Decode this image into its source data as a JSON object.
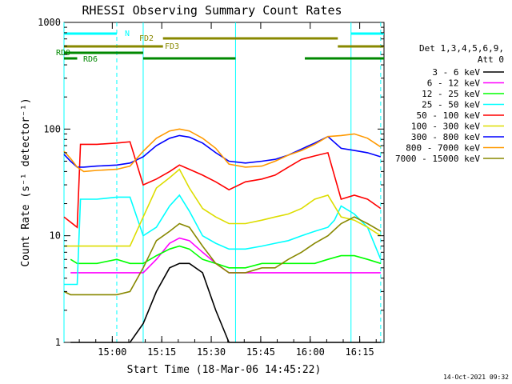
{
  "chart_data": {
    "type": "line",
    "title": "RHESSI Observing Summary Count Rates",
    "xlabel": "Start Time (18-Mar-06 14:45:22)",
    "ylabel": "Count Rate (s⁻¹ detector⁻¹)",
    "y_scale": "log",
    "ylim": [
      1,
      1000
    ],
    "xlim_minutes_from_start": [
      0,
      97
    ],
    "x_ticks": [
      "15:00",
      "15:15",
      "15:30",
      "15:45",
      "16:00",
      "16:15"
    ],
    "y_ticks": [
      "1",
      "10",
      "100",
      "1000"
    ],
    "legend_header": [
      "Det 1,3,4,5,6,9,",
      "Att 0"
    ],
    "legend_position": "right",
    "grid": false,
    "series": [
      {
        "name": "3 - 6 keV",
        "color": "#000000",
        "x": [
          2,
          4,
          10,
          16,
          20,
          24,
          28,
          32,
          35,
          38,
          42,
          46,
          50,
          55,
          60,
          64,
          68,
          72,
          76,
          80,
          84,
          88,
          92,
          96
        ],
        "y": [
          1,
          1,
          1,
          1,
          1,
          1.5,
          3,
          5,
          5.5,
          5.5,
          4.5,
          2,
          1,
          1,
          1,
          1,
          1,
          1,
          1,
          1,
          1,
          1,
          1,
          1
        ]
      },
      {
        "name": "6 - 12 keV",
        "color": "#ff00ff",
        "x": [
          2,
          4,
          10,
          16,
          20,
          24,
          28,
          32,
          35,
          38,
          42,
          46,
          50,
          55,
          60,
          64,
          68,
          72,
          76,
          80,
          84,
          88,
          92,
          96
        ],
        "y": [
          4.5,
          4.5,
          4.5,
          4.5,
          4.5,
          4.5,
          6,
          8.5,
          9.5,
          9,
          7,
          5.5,
          4.5,
          4.5,
          4.5,
          4.5,
          4.5,
          4.5,
          4.5,
          4.5,
          4.5,
          4.5,
          4.5,
          4.5
        ]
      },
      {
        "name": "12 - 25 keV",
        "color": "#00ff00",
        "x": [
          2,
          4,
          10,
          16,
          20,
          24,
          28,
          32,
          35,
          38,
          42,
          46,
          50,
          55,
          60,
          64,
          68,
          72,
          76,
          80,
          84,
          88,
          92,
          96
        ],
        "y": [
          6,
          5.5,
          5.5,
          6,
          5.5,
          5.5,
          6.5,
          7.5,
          8,
          7.5,
          6,
          5.5,
          5,
          5,
          5.5,
          5.5,
          5.5,
          5.5,
          5.5,
          6,
          6.5,
          6.5,
          6,
          5.5
        ]
      },
      {
        "name": "25 - 50 keV",
        "color": "#00ffff",
        "x": [
          0,
          4,
          5,
          10,
          16,
          20,
          24,
          28,
          32,
          35,
          38,
          42,
          46,
          50,
          55,
          60,
          64,
          68,
          72,
          76,
          80,
          82,
          84,
          88,
          92,
          96
        ],
        "y": [
          3.5,
          3.5,
          22,
          22,
          23,
          23,
          10,
          12,
          19,
          24,
          17,
          10,
          8.5,
          7.5,
          7.5,
          8,
          8.5,
          9,
          10,
          11,
          12,
          14,
          19,
          16,
          12,
          6
        ]
      },
      {
        "name": "50 - 100 keV",
        "color": "#ff0000",
        "x": [
          0,
          4,
          5,
          10,
          16,
          20,
          24,
          28,
          32,
          35,
          38,
          42,
          46,
          50,
          55,
          60,
          64,
          68,
          72,
          76,
          80,
          84,
          88,
          92,
          96
        ],
        "y": [
          15,
          12,
          72,
          72,
          74,
          76,
          30,
          34,
          40,
          46,
          42,
          37,
          32,
          27,
          32,
          34,
          37,
          44,
          52,
          56,
          60,
          22,
          24,
          22,
          18
        ]
      },
      {
        "name": "100 - 300 keV",
        "color": "#dddd00",
        "x": [
          0,
          2,
          4,
          5,
          10,
          16,
          20,
          24,
          28,
          32,
          35,
          38,
          42,
          46,
          50,
          55,
          60,
          64,
          68,
          72,
          76,
          80,
          84,
          88,
          92,
          96
        ],
        "y": [
          8,
          8,
          8,
          8,
          8,
          8,
          8,
          15,
          28,
          35,
          42,
          28,
          18,
          15,
          13,
          13,
          14,
          15,
          16,
          18,
          22,
          24,
          15,
          14,
          12,
          10
        ]
      },
      {
        "name": "300 - 800 keV",
        "color": "#0000ff",
        "x": [
          0,
          2,
          4,
          6,
          10,
          16,
          20,
          24,
          28,
          32,
          35,
          38,
          42,
          46,
          50,
          55,
          60,
          64,
          68,
          72,
          76,
          80,
          84,
          88,
          92,
          96
        ],
        "y": [
          58,
          50,
          44,
          44,
          45,
          46,
          48,
          55,
          70,
          82,
          87,
          84,
          74,
          60,
          50,
          48,
          50,
          52,
          57,
          65,
          74,
          85,
          66,
          63,
          60,
          55
        ]
      },
      {
        "name": "800 - 7000 keV",
        "color": "#ff9900",
        "x": [
          0,
          2,
          4,
          6,
          10,
          16,
          20,
          24,
          28,
          32,
          35,
          38,
          42,
          46,
          50,
          55,
          60,
          64,
          68,
          72,
          76,
          80,
          84,
          88,
          92,
          96
        ],
        "y": [
          62,
          53,
          44,
          40,
          41,
          42,
          45,
          62,
          82,
          96,
          100,
          96,
          82,
          66,
          47,
          44,
          45,
          50,
          57,
          63,
          72,
          85,
          87,
          90,
          82,
          68
        ]
      },
      {
        "name": "7000 - 15000 keV",
        "color": "#888800",
        "x": [
          0,
          2,
          4,
          5,
          10,
          16,
          20,
          24,
          28,
          32,
          35,
          38,
          42,
          46,
          50,
          55,
          60,
          64,
          68,
          72,
          76,
          80,
          84,
          88,
          92,
          96
        ],
        "y": [
          3,
          2.8,
          2.8,
          2.8,
          2.8,
          2.8,
          3,
          5,
          9,
          11,
          13,
          12,
          8,
          5.5,
          4.5,
          4.5,
          5,
          5,
          6,
          7,
          8.5,
          10,
          13,
          15,
          13,
          11
        ]
      }
    ],
    "annotations": [
      "N",
      "FD2",
      "FD3",
      "RD0",
      "RD6"
    ],
    "attenuator_intervals": [
      {
        "label": "N",
        "color": "#00ffff",
        "start": 0,
        "end": 16
      },
      {
        "label": "N",
        "color": "#00ffff",
        "start": 87,
        "end": 97
      },
      {
        "label": "FD2",
        "color": "#888800",
        "start": 30,
        "end": 83
      },
      {
        "label": "FD3",
        "color": "#888800",
        "start": 0,
        "end": 30
      },
      {
        "label": "FD3",
        "color": "#888800",
        "start": 83,
        "end": 97
      },
      {
        "label": "RD0",
        "color": "#008800",
        "start": 0,
        "end": 24
      },
      {
        "label": "RD6",
        "color": "#008800",
        "start": 0,
        "end": 4
      },
      {
        "label": "RD6",
        "color": "#008800",
        "start": 24,
        "end": 52
      },
      {
        "label": "RD6",
        "color": "#008800",
        "start": 73,
        "end": 97
      }
    ],
    "vertical_markers": [
      {
        "x": 0,
        "style": "solid",
        "color": "#00ffff"
      },
      {
        "x": 16,
        "style": "dashed",
        "color": "#00ffff"
      },
      {
        "x": 24,
        "style": "solid",
        "color": "#00ffff"
      },
      {
        "x": 52,
        "style": "solid",
        "color": "#00ffff"
      },
      {
        "x": 87,
        "style": "solid",
        "color": "#00ffff"
      },
      {
        "x": 96,
        "style": "dashed",
        "color": "#00ffff"
      }
    ],
    "footer_timestamp": "14-Oct-2021 09:32"
  }
}
